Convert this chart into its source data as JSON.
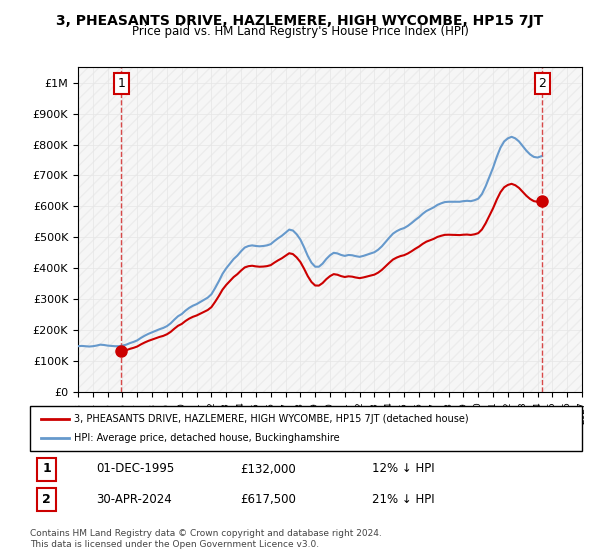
{
  "title": "3, PHEASANTS DRIVE, HAZLEMERE, HIGH WYCOMBE, HP15 7JT",
  "subtitle": "Price paid vs. HM Land Registry's House Price Index (HPI)",
  "ylabel": "",
  "xlabel": "",
  "ylim": [
    0,
    1050000
  ],
  "yticks": [
    0,
    100000,
    200000,
    300000,
    400000,
    500000,
    600000,
    700000,
    800000,
    900000,
    1000000
  ],
  "ytick_labels": [
    "£0",
    "£100K",
    "£200K",
    "£300K",
    "£400K",
    "£500K",
    "£600K",
    "£700K",
    "£800K",
    "£900K",
    "£1M"
  ],
  "x_start_year": 1993,
  "x_end_year": 2027,
  "sale1_year": 1995.917,
  "sale1_price": 132000,
  "sale2_year": 2024.333,
  "sale2_price": 617500,
  "sale1_label": "1",
  "sale2_label": "2",
  "sale1_date": "01-DEC-1995",
  "sale2_date": "30-APR-2024",
  "sale1_pct": "12% ↓ HPI",
  "sale2_pct": "21% ↓ HPI",
  "red_color": "#cc0000",
  "blue_color": "#6699cc",
  "legend_line1": "3, PHEASANTS DRIVE, HAZLEMERE, HIGH WYCOMBE, HP15 7JT (detached house)",
  "legend_line2": "HPI: Average price, detached house, Buckinghamshire",
  "footer": "Contains HM Land Registry data © Crown copyright and database right 2024.\nThis data is licensed under the Open Government Licence v3.0.",
  "hpi_data": {
    "years": [
      1993.0,
      1993.25,
      1993.5,
      1993.75,
      1994.0,
      1994.25,
      1994.5,
      1994.75,
      1995.0,
      1995.25,
      1995.5,
      1995.75,
      1996.0,
      1996.25,
      1996.5,
      1996.75,
      1997.0,
      1997.25,
      1997.5,
      1997.75,
      1998.0,
      1998.25,
      1998.5,
      1998.75,
      1999.0,
      1999.25,
      1999.5,
      1999.75,
      2000.0,
      2000.25,
      2000.5,
      2000.75,
      2001.0,
      2001.25,
      2001.5,
      2001.75,
      2002.0,
      2002.25,
      2002.5,
      2002.75,
      2003.0,
      2003.25,
      2003.5,
      2003.75,
      2004.0,
      2004.25,
      2004.5,
      2004.75,
      2005.0,
      2005.25,
      2005.5,
      2005.75,
      2006.0,
      2006.25,
      2006.5,
      2006.75,
      2007.0,
      2007.25,
      2007.5,
      2007.75,
      2008.0,
      2008.25,
      2008.5,
      2008.75,
      2009.0,
      2009.25,
      2009.5,
      2009.75,
      2010.0,
      2010.25,
      2010.5,
      2010.75,
      2011.0,
      2011.25,
      2011.5,
      2011.75,
      2012.0,
      2012.25,
      2012.5,
      2012.75,
      2013.0,
      2013.25,
      2013.5,
      2013.75,
      2014.0,
      2014.25,
      2014.5,
      2014.75,
      2015.0,
      2015.25,
      2015.5,
      2015.75,
      2016.0,
      2016.25,
      2016.5,
      2016.75,
      2017.0,
      2017.25,
      2017.5,
      2017.75,
      2018.0,
      2018.25,
      2018.5,
      2018.75,
      2019.0,
      2019.25,
      2019.5,
      2019.75,
      2020.0,
      2020.25,
      2020.5,
      2020.75,
      2021.0,
      2021.25,
      2021.5,
      2021.75,
      2022.0,
      2022.25,
      2022.5,
      2022.75,
      2023.0,
      2023.25,
      2023.5,
      2023.75,
      2024.0,
      2024.25
    ],
    "values": [
      148000,
      149000,
      148000,
      147000,
      148000,
      150000,
      153000,
      152000,
      150000,
      149000,
      148000,
      148000,
      150000,
      153000,
      158000,
      162000,
      167000,
      175000,
      182000,
      188000,
      193000,
      198000,
      203000,
      207000,
      213000,
      222000,
      234000,
      245000,
      252000,
      263000,
      272000,
      279000,
      284000,
      291000,
      298000,
      305000,
      316000,
      336000,
      358000,
      382000,
      400000,
      415000,
      430000,
      441000,
      455000,
      467000,
      472000,
      474000,
      472000,
      471000,
      472000,
      474000,
      478000,
      488000,
      497000,
      505000,
      515000,
      525000,
      522000,
      510000,
      493000,
      468000,
      440000,
      418000,
      405000,
      405000,
      415000,
      430000,
      442000,
      450000,
      448000,
      443000,
      440000,
      443000,
      442000,
      439000,
      437000,
      440000,
      444000,
      448000,
      452000,
      460000,
      471000,
      485000,
      499000,
      512000,
      520000,
      526000,
      530000,
      537000,
      546000,
      556000,
      565000,
      576000,
      585000,
      591000,
      597000,
      605000,
      610000,
      614000,
      615000,
      615000,
      615000,
      615000,
      617000,
      618000,
      617000,
      620000,
      625000,
      640000,
      665000,
      695000,
      725000,
      760000,
      790000,
      810000,
      820000,
      825000,
      820000,
      810000,
      795000,
      780000,
      768000,
      760000,
      758000,
      762000
    ]
  },
  "hpi_red_data": {
    "years": [
      1995.917,
      2024.333
    ],
    "values": [
      132000,
      617500
    ]
  }
}
